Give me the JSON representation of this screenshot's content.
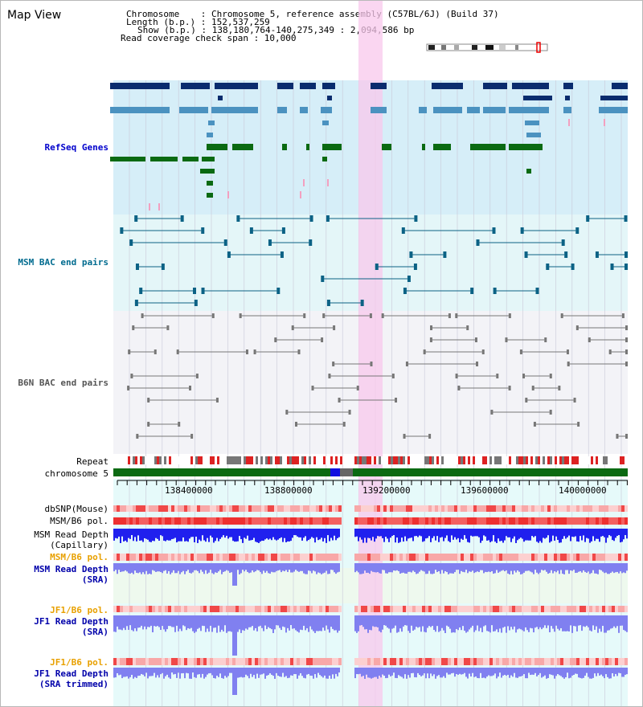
{
  "page": {
    "title": "Map View",
    "info_lines": [
      "Chromosome    : Chromosome 5, reference assembly (C57BL/6J) (Build 37)",
      "Length (b.p.) : 152,537,259",
      "Show (b.p.) : 138,180,764-140,275,349 : 2,094,586 bp",
      "Read coverage check span : 10,000"
    ]
  },
  "tracks": {
    "refseq": "RefSeq Genes",
    "msm_bac": "MSM BAC end pairs",
    "b6n_bac": "B6N BAC end pairs",
    "repeat": "Repeat",
    "chromosome": "chromosome 5",
    "dbsnp": "dbSNP(Mouse)",
    "msm_b6_pol_1": "MSM/B6 pol.",
    "msm_read_depth_cap_1": "MSM Read Depth",
    "msm_read_depth_cap_2": "(Capillary)",
    "msm_b6_pol_2": "MSM/B6 pol.",
    "msm_read_depth_sra_1": "MSM Read Depth",
    "msm_read_depth_sra_2": "(SRA)",
    "jf1_b6_pol_1": "JF1/B6 pol.",
    "jf1_read_depth_1": "JF1 Read Depth",
    "jf1_read_depth_2": "(SRA)",
    "jf1_b6_pol_2": "JF1/B6 pol.",
    "jf1_trim_1": "JF1 Read Depth",
    "jf1_trim_2": "(SRA trimmed)"
  },
  "axis": {
    "ticks": [
      "138400000",
      "138800000",
      "139200000",
      "139600000",
      "140000000"
    ]
  },
  "colors": {
    "refseq_bg": "#d6eef8",
    "msm_bg": "#e4f6f8",
    "b6n_bg": "#f3f3f7",
    "highlight": "#f8c8ec",
    "gene_dark": "#0a2c6e",
    "gene_light": "#4b92c0",
    "gene_green": "#0b6a12",
    "msm_bac": "#0b6285",
    "b6n_bac": "#777777",
    "chromosome_bar": "#0b6a12",
    "depth_blue": "#2020ee",
    "depth_light": "#8080f0"
  }
}
